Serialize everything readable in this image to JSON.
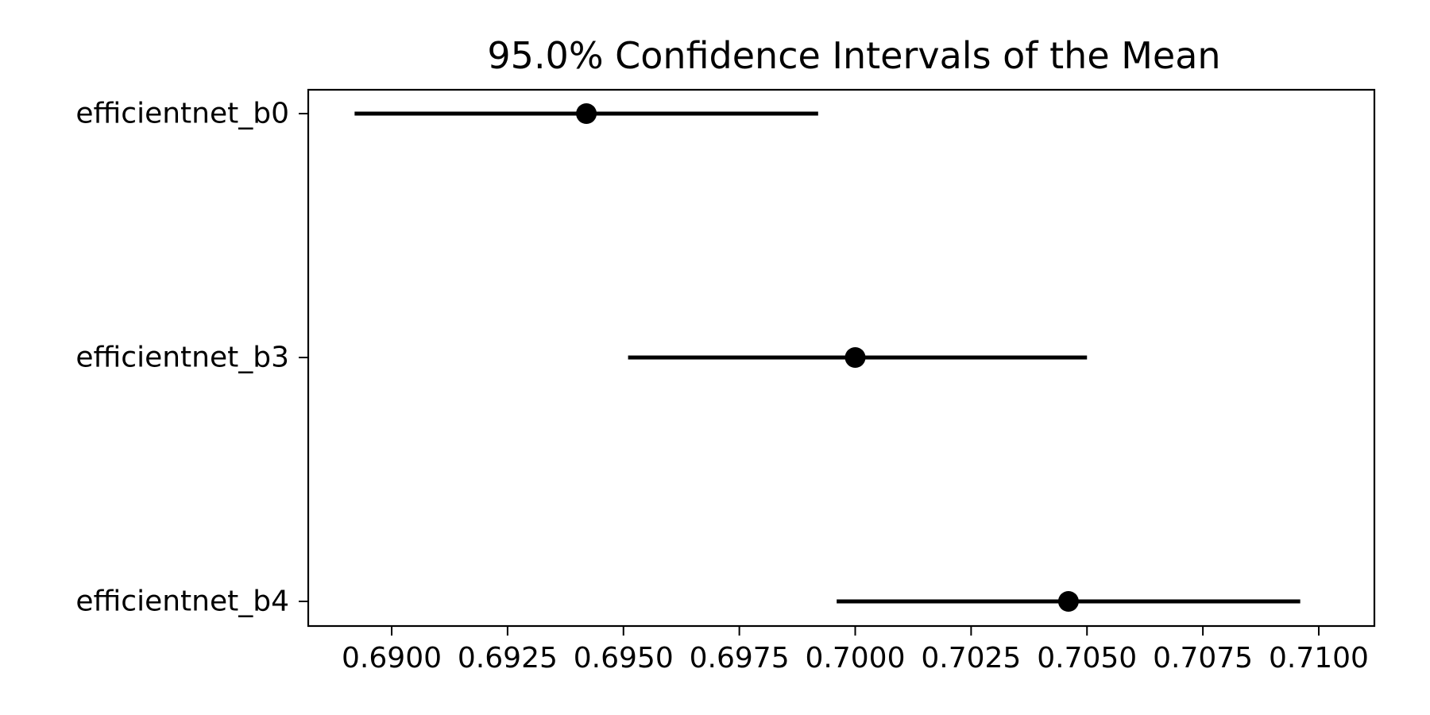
{
  "chart_data": {
    "type": "errorbar",
    "title": "95.0% Confidence Intervals of the Mean",
    "xlabel": "",
    "ylabel": "",
    "xlim": [
      0.6882,
      0.7112
    ],
    "x_ticks": [
      0.69,
      0.6925,
      0.695,
      0.6975,
      0.7,
      0.7025,
      0.705,
      0.7075,
      0.71
    ],
    "x_tick_labels": [
      "0.6900",
      "0.6925",
      "0.6950",
      "0.6975",
      "0.7000",
      "0.7025",
      "0.7050",
      "0.7075",
      "0.7100"
    ],
    "categories": [
      "efficientnet_b0",
      "efficientnet_b3",
      "efficientnet_b4"
    ],
    "series": [
      {
        "means": [
          0.6942,
          0.7,
          0.7046
        ],
        "lower": [
          0.6892,
          0.6951,
          0.6996
        ],
        "upper": [
          0.6992,
          0.705,
          0.7096
        ]
      }
    ],
    "grid": false,
    "legend": "none",
    "color": "#000000"
  }
}
